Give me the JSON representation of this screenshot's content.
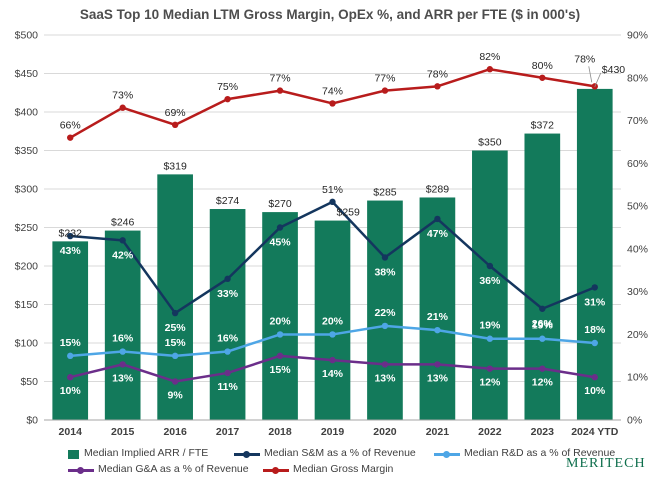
{
  "chart_data": {
    "type": "bar",
    "title": "SaaS Top 10 Median LTM Gross Margin, OpEx %, and ARR per FTE ($ in 000's)",
    "categories": [
      "2014",
      "2015",
      "2016",
      "2017",
      "2018",
      "2019",
      "2020",
      "2021",
      "2022",
      "2023",
      "2024 YTD"
    ],
    "ylim": [
      0,
      500
    ],
    "y2lim": [
      0,
      90
    ],
    "y_ticks": [
      "$0",
      "$50",
      "$100",
      "$150",
      "$200",
      "$250",
      "$300",
      "$350",
      "$400",
      "$450",
      "$500"
    ],
    "y2_ticks": [
      "0%",
      "10%",
      "20%",
      "30%",
      "40%",
      "50%",
      "60%",
      "70%",
      "80%",
      "90%"
    ],
    "bar_series": {
      "name": "Median Implied ARR / FTE",
      "color": "#137a5b",
      "values": [
        232,
        246,
        319,
        274,
        270,
        259,
        285,
        289,
        350,
        372,
        430
      ],
      "labels": [
        "$232",
        "$246",
        "$319",
        "$274",
        "$270",
        "$259",
        "$285",
        "$289",
        "$350",
        "$372",
        "$430"
      ]
    },
    "line_series": [
      {
        "name": "Median S&M as a % of Revenue",
        "color": "#14365e",
        "values": [
          43,
          42,
          25,
          33,
          45,
          51,
          38,
          47,
          36,
          26,
          31
        ],
        "labels": [
          "43%",
          "42%",
          "25%",
          "33%",
          "45%",
          "51%",
          "38%",
          "47%",
          "36%",
          "26%",
          "31%"
        ]
      },
      {
        "name": "Median R&D as a % of Revenue",
        "color": "#4ea6e6",
        "values": [
          15,
          16,
          15,
          16,
          20,
          20,
          22,
          21,
          19,
          19,
          18
        ],
        "labels": [
          "15%",
          "16%",
          "15%",
          "16%",
          "20%",
          "20%",
          "22%",
          "21%",
          "19%",
          "19%",
          "18%"
        ]
      },
      {
        "name": "Median G&A as a % of Revenue",
        "color": "#6b2e8a",
        "values": [
          10,
          13,
          9,
          11,
          15,
          14,
          13,
          13,
          12,
          12,
          10
        ],
        "labels": [
          "10%",
          "13%",
          "9%",
          "11%",
          "15%",
          "14%",
          "13%",
          "13%",
          "12%",
          "12%",
          "10%"
        ]
      },
      {
        "name": "Median Gross Margin",
        "color": "#b81c1c",
        "values": [
          66,
          73,
          69,
          75,
          77,
          74,
          77,
          78,
          82,
          80,
          78
        ],
        "labels": [
          "66%",
          "73%",
          "69%",
          "75%",
          "77%",
          "74%",
          "77%",
          "78%",
          "82%",
          "80%",
          "78%"
        ]
      }
    ],
    "grid": true,
    "legend_position": "bottom"
  },
  "legend": {
    "bar": "Median Implied ARR / FTE",
    "sm": "Median S&M as a % of Revenue",
    "rd": "Median R&D as a % of Revenue",
    "ga": "Median G&A as a % of Revenue",
    "gm": "Median Gross Margin"
  },
  "brand": "MERITECH"
}
